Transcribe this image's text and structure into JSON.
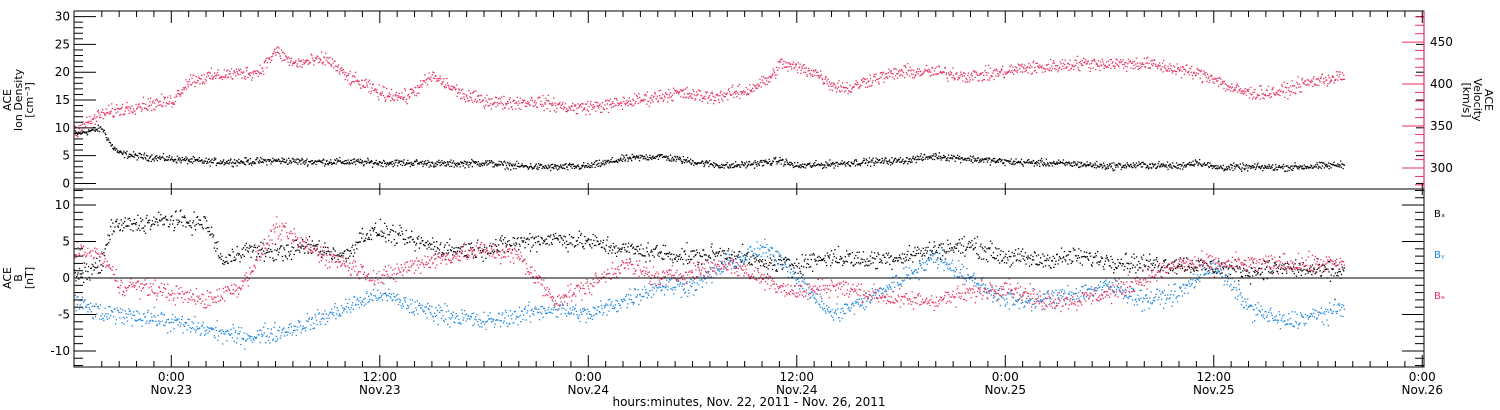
{
  "colors": {
    "density": "#000000",
    "velocity": "#e8305f",
    "bx": "#000000",
    "by": "#1d86e0",
    "bz": "#e8305f"
  },
  "chart_data": [
    {
      "type": "scatter",
      "panel": "top",
      "y_label_lines": [
        "ACE",
        "Ion Density",
        "[cm⁻³]"
      ],
      "y2_label_lines": [
        "ACE",
        "Velocity",
        "[km/s]"
      ],
      "ylim": [
        -1,
        31
      ],
      "yticks": [
        "0",
        "5",
        "10",
        "15",
        "20",
        "25",
        "30"
      ],
      "y2lim": [
        275,
        487
      ],
      "y2ticks": [
        "300",
        "350",
        "400",
        "450"
      ],
      "series": [
        {
          "id": "density",
          "axis": "left",
          "points": [
            [
              -5.6,
              9
            ],
            [
              -4,
              10
            ],
            [
              -3.5,
              7
            ],
            [
              -3,
              5.5
            ],
            [
              -2,
              5
            ],
            [
              0,
              4.5
            ],
            [
              2,
              4
            ],
            [
              4,
              4
            ],
            [
              6,
              4.2
            ],
            [
              8,
              4
            ],
            [
              10,
              4
            ],
            [
              12,
              3.8
            ],
            [
              14,
              3.8
            ],
            [
              16,
              3.6
            ],
            [
              18,
              3.8
            ],
            [
              20,
              3.2
            ],
            [
              22,
              3
            ],
            [
              24,
              3.2
            ],
            [
              26,
              4.5
            ],
            [
              28,
              5
            ],
            [
              30,
              4
            ],
            [
              32,
              3.2
            ],
            [
              34,
              3.8
            ],
            [
              35,
              4.2
            ],
            [
              36,
              3.2
            ],
            [
              38,
              3.6
            ],
            [
              40,
              4
            ],
            [
              42,
              4.2
            ],
            [
              44,
              5
            ],
            [
              46,
              4.5
            ],
            [
              48,
              4
            ],
            [
              50,
              3.8
            ],
            [
              52,
              3.6
            ],
            [
              54,
              3.2
            ],
            [
              56,
              3.4
            ],
            [
              58,
              3.2
            ],
            [
              59,
              4
            ],
            [
              60,
              3
            ],
            [
              62,
              3
            ],
            [
              64,
              3
            ],
            [
              66,
              3.2
            ],
            [
              67.5,
              3.5
            ]
          ]
        },
        {
          "id": "velocity",
          "axis": "right",
          "points": [
            [
              -5.6,
              345
            ],
            [
              -4,
              365
            ],
            [
              -2,
              375
            ],
            [
              0,
              380
            ],
            [
              1,
              405
            ],
            [
              3,
              412
            ],
            [
              5,
              415
            ],
            [
              6,
              440
            ],
            [
              7,
              425
            ],
            [
              9,
              430
            ],
            [
              10,
              410
            ],
            [
              12,
              390
            ],
            [
              13.5,
              385
            ],
            [
              15,
              410
            ],
            [
              17,
              385
            ],
            [
              19,
              378
            ],
            [
              21,
              380
            ],
            [
              23,
              372
            ],
            [
              25,
              375
            ],
            [
              27,
              382
            ],
            [
              29,
              390
            ],
            [
              31,
              385
            ],
            [
              33,
              392
            ],
            [
              34.5,
              408
            ],
            [
              35,
              425
            ],
            [
              36,
              420
            ],
            [
              37,
              415
            ],
            [
              38,
              400
            ],
            [
              39,
              395
            ],
            [
              40,
              405
            ],
            [
              42,
              415
            ],
            [
              44,
              415
            ],
            [
              46,
              410
            ],
            [
              48,
              415
            ],
            [
              49,
              420
            ],
            [
              50,
              420
            ],
            [
              52,
              425
            ],
            [
              54,
              425
            ],
            [
              56,
              425
            ],
            [
              58,
              418
            ],
            [
              60,
              408
            ],
            [
              61,
              395
            ],
            [
              62,
              390
            ],
            [
              63,
              390
            ],
            [
              64,
              392
            ],
            [
              65,
              400
            ],
            [
              66,
              405
            ],
            [
              67.5,
              410
            ]
          ]
        }
      ]
    },
    {
      "type": "scatter",
      "panel": "bottom",
      "y_label_lines": [
        "ACE",
        "B",
        "[nT]"
      ],
      "ylim": [
        -12.2,
        12.2
      ],
      "yticks": [
        "-10",
        "-5",
        "0",
        "5",
        "10"
      ],
      "legend": [
        "Bₓ",
        "Bᵧ",
        "Bₔ"
      ],
      "zero_line": true,
      "series": [
        {
          "id": "bx",
          "points": [
            [
              -5.6,
              0
            ],
            [
              -4,
              2
            ],
            [
              -3.5,
              7
            ],
            [
              -2,
              7.5
            ],
            [
              0,
              8
            ],
            [
              2,
              7.5
            ],
            [
              3,
              2
            ],
            [
              4,
              4
            ],
            [
              6,
              3.5
            ],
            [
              8,
              4.5
            ],
            [
              10,
              3
            ],
            [
              11,
              6
            ],
            [
              12,
              6.5
            ],
            [
              14,
              5
            ],
            [
              16,
              4
            ],
            [
              18,
              4
            ],
            [
              20,
              5
            ],
            [
              22,
              5.5
            ],
            [
              24,
              5
            ],
            [
              26,
              4
            ],
            [
              28,
              3.5
            ],
            [
              30,
              3
            ],
            [
              32,
              3.5
            ],
            [
              34,
              2
            ],
            [
              36,
              2
            ],
            [
              38,
              3
            ],
            [
              40,
              2.5
            ],
            [
              42,
              3
            ],
            [
              44,
              4
            ],
            [
              46,
              4.5
            ],
            [
              48,
              3
            ],
            [
              50,
              2.5
            ],
            [
              52,
              3
            ],
            [
              54,
              2.5
            ],
            [
              56,
              2
            ],
            [
              58,
              2
            ],
            [
              60,
              1.5
            ],
            [
              62,
              1
            ],
            [
              64,
              1.5
            ],
            [
              66,
              1
            ],
            [
              67.5,
              1
            ]
          ]
        },
        {
          "id": "by",
          "points": [
            [
              -5.6,
              -3
            ],
            [
              -4,
              -5
            ],
            [
              -2,
              -5
            ],
            [
              0,
              -6
            ],
            [
              2,
              -7
            ],
            [
              4,
              -8
            ],
            [
              6,
              -7.5
            ],
            [
              8,
              -6
            ],
            [
              10,
              -4
            ],
            [
              12,
              -2
            ],
            [
              14,
              -4
            ],
            [
              16,
              -5
            ],
            [
              18,
              -6
            ],
            [
              20,
              -5
            ],
            [
              22,
              -4
            ],
            [
              24,
              -5
            ],
            [
              26,
              -3
            ],
            [
              28,
              -1
            ],
            [
              30,
              -1
            ],
            [
              32,
              2
            ],
            [
              34,
              4
            ],
            [
              35,
              3
            ],
            [
              36,
              0
            ],
            [
              38,
              -5
            ],
            [
              40,
              -3
            ],
            [
              42,
              0
            ],
            [
              44,
              3
            ],
            [
              46,
              0
            ],
            [
              48,
              -3
            ],
            [
              50,
              -3
            ],
            [
              52,
              -2
            ],
            [
              54,
              -1
            ],
            [
              56,
              -3
            ],
            [
              58,
              -2
            ],
            [
              60,
              2
            ],
            [
              62,
              -4
            ],
            [
              64,
              -6
            ],
            [
              66,
              -5
            ],
            [
              67.5,
              -4
            ]
          ]
        },
        {
          "id": "bz",
          "points": [
            [
              -5.6,
              4
            ],
            [
              -4,
              3
            ],
            [
              -3,
              -1
            ],
            [
              -2,
              -1
            ],
            [
              0,
              -2
            ],
            [
              2,
              -3
            ],
            [
              4,
              -1
            ],
            [
              6,
              7
            ],
            [
              8,
              4
            ],
            [
              10,
              2
            ],
            [
              12,
              0
            ],
            [
              14,
              2
            ],
            [
              16,
              3
            ],
            [
              18,
              4
            ],
            [
              20,
              3
            ],
            [
              22,
              -3
            ],
            [
              24,
              -1
            ],
            [
              26,
              2
            ],
            [
              28,
              0
            ],
            [
              30,
              1
            ],
            [
              32,
              2
            ],
            [
              34,
              0
            ],
            [
              36,
              -2
            ],
            [
              38,
              -1
            ],
            [
              40,
              -2
            ],
            [
              42,
              -3
            ],
            [
              44,
              -3
            ],
            [
              46,
              -2
            ],
            [
              48,
              -1
            ],
            [
              50,
              -3
            ],
            [
              52,
              -3
            ],
            [
              54,
              -2
            ],
            [
              56,
              0
            ],
            [
              58,
              2
            ],
            [
              60,
              2
            ],
            [
              62,
              2
            ],
            [
              64,
              2
            ],
            [
              66,
              2
            ],
            [
              67.5,
              2
            ]
          ]
        }
      ]
    }
  ],
  "xaxis": {
    "title": "hours:minutes, Nov. 22, 2011 - Nov. 26, 2011",
    "xlim": [
      -5.6,
      72.1
    ],
    "tick_hours": [
      0,
      12,
      24,
      36,
      48,
      60,
      72
    ],
    "tick_labels": [
      {
        "time": "0:00",
        "date": "Nov.23"
      },
      {
        "time": "12:00",
        "date": "Nov.23"
      },
      {
        "time": "0:00",
        "date": "Nov.24"
      },
      {
        "time": "12:00",
        "date": "Nov.24"
      },
      {
        "time": "0:00",
        "date": "Nov.25"
      },
      {
        "time": "12:00",
        "date": "Nov.25"
      },
      {
        "time": "0:00",
        "date": "Nov.26"
      }
    ]
  }
}
